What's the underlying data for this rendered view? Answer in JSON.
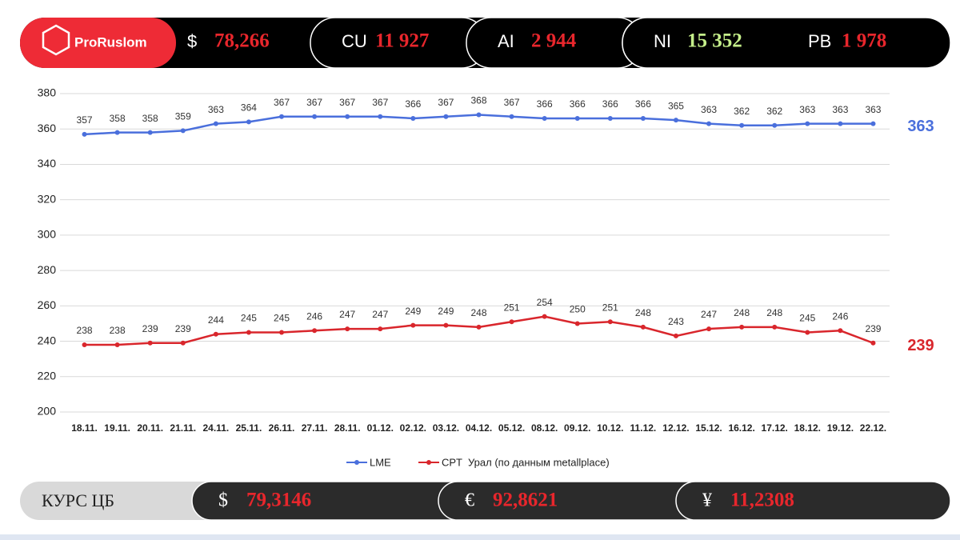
{
  "header": {
    "logo": "ProRuslom",
    "tickers": [
      {
        "label": "$",
        "value": "78,266",
        "color": "#e8262c"
      },
      {
        "label": "CU",
        "value": "11 927",
        "color": "#e8262c"
      },
      {
        "label": "AI",
        "value": "2 944",
        "color": "#e8262c"
      },
      {
        "label": "NI",
        "value": "15 352",
        "color": "#c5ef8a"
      },
      {
        "label": "PB",
        "value": "1 978",
        "color": "#e8262c"
      }
    ]
  },
  "footer": {
    "title": "КУРС ЦБ",
    "rates": [
      {
        "label": "$",
        "value": "79,3146"
      },
      {
        "label": "€",
        "value": "92,8621"
      },
      {
        "label": "¥",
        "value": "11,2308"
      }
    ]
  },
  "chart_data": {
    "type": "line",
    "categories": [
      "18.11.",
      "19.11.",
      "20.11.",
      "21.11.",
      "24.11.",
      "25.11.",
      "26.11.",
      "27.11.",
      "28.11.",
      "01.12.",
      "02.12.",
      "03.12.",
      "04.12.",
      "05.12.",
      "08.12.",
      "09.12.",
      "10.12.",
      "11.12.",
      "12.12.",
      "15.12.",
      "16.12.",
      "17.12.",
      "18.12.",
      "19.12.",
      "22.12."
    ],
    "series": [
      {
        "name": "LME",
        "color": "#4a6fdc",
        "values": [
          357,
          358,
          358,
          359,
          363,
          364,
          367,
          367,
          367,
          367,
          366,
          367,
          368,
          367,
          366,
          366,
          366,
          366,
          365,
          363,
          362,
          362,
          363,
          363,
          363
        ]
      },
      {
        "name": "CPT  Урал (по данным metallplace)",
        "color": "#d9262c",
        "values": [
          238,
          238,
          239,
          239,
          244,
          245,
          245,
          246,
          247,
          247,
          249,
          249,
          248,
          251,
          254,
          250,
          251,
          248,
          243,
          247,
          248,
          248,
          245,
          246,
          239
        ]
      }
    ],
    "ylim": [
      200,
      380
    ],
    "yticks": [
      200,
      220,
      240,
      260,
      280,
      300,
      320,
      340,
      360,
      380
    ],
    "grid": true,
    "legend": "bottom"
  }
}
